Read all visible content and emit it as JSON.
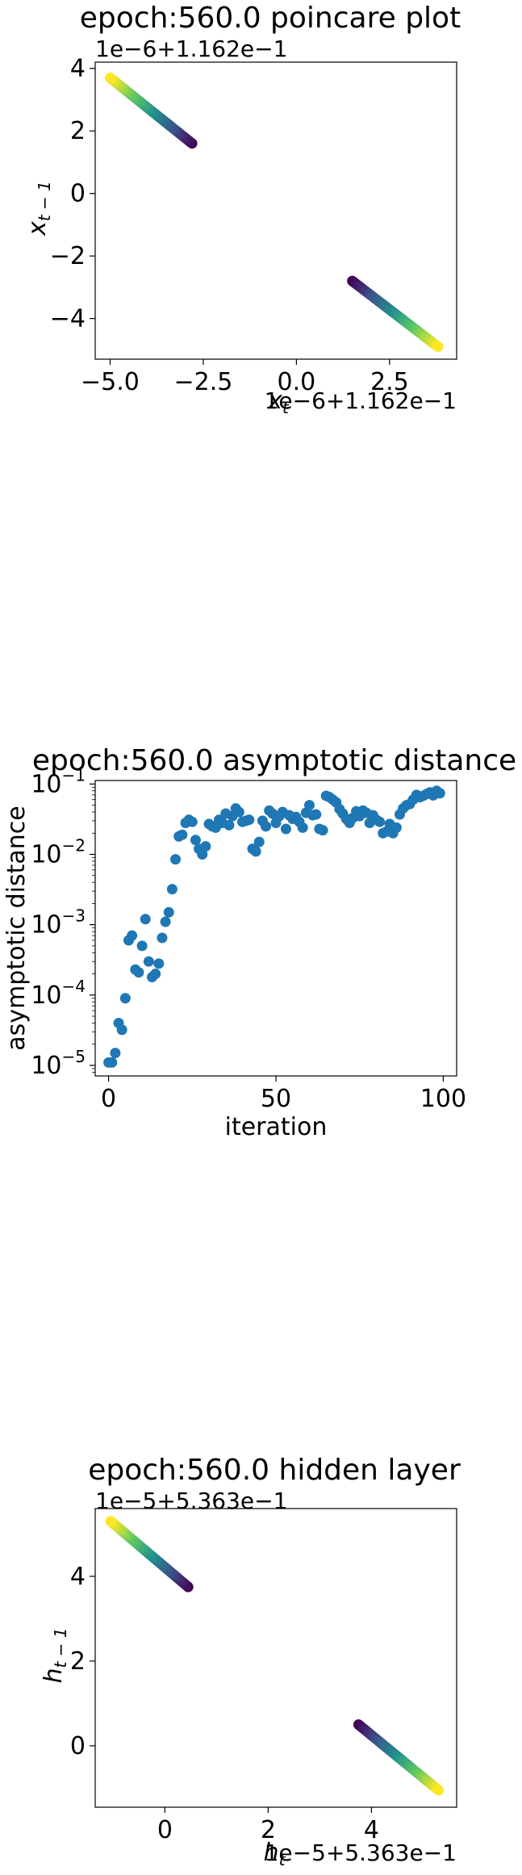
{
  "chart_data": [
    {
      "type": "scatter",
      "title": "epoch:560.0 poincare plot",
      "xlabel": "x_t",
      "ylabel": "x_{t-1}",
      "x_offset_text": "1e−6+1.162e−1",
      "y_offset_text": "1e−6+1.162e−1",
      "xlim": [
        -5.4,
        4.3
      ],
      "ylim": [
        -5.3,
        4.2
      ],
      "x_ticks": [
        "−5.0",
        "−2.5",
        "0.0",
        "2.5"
      ],
      "x_tick_values": [
        -5.0,
        -2.5,
        0.0,
        2.5
      ],
      "y_ticks": [
        "−4",
        "−2",
        "0",
        "2",
        "4"
      ],
      "y_tick_values": [
        -4,
        -2,
        0,
        2,
        4
      ],
      "colormap": "viridis",
      "segments": [
        {
          "x_start": -2.8,
          "y_start": 1.6,
          "x_end": -5.0,
          "y_end": 3.7,
          "color_start": "#440154",
          "color_end": "#fde725"
        },
        {
          "x_start": 1.5,
          "y_start": -2.8,
          "x_end": 3.8,
          "y_end": -4.9,
          "color_start": "#440154",
          "color_end": "#fde725"
        }
      ]
    },
    {
      "type": "scatter",
      "title": "epoch:560.0 asymptotic distance",
      "xlabel": "iteration",
      "ylabel": "asymptotic distance",
      "yscale": "log",
      "xlim": [
        -4,
        104
      ],
      "ylim_log10": [
        -5.15,
        -0.95
      ],
      "x_ticks": [
        "0",
        "50",
        "100"
      ],
      "x_tick_values": [
        0,
        50,
        100
      ],
      "y_tick_exponents": [
        -5,
        -4,
        -3,
        -2,
        -1
      ],
      "marker_color": "#1f77b4",
      "x": [
        0,
        1,
        2,
        3,
        4,
        5,
        6,
        7,
        8,
        9,
        10,
        11,
        12,
        13,
        14,
        15,
        16,
        17,
        18,
        19,
        20,
        21,
        22,
        23,
        24,
        25,
        26,
        27,
        28,
        29,
        30,
        31,
        32,
        33,
        34,
        35,
        36,
        37,
        38,
        39,
        40,
        41,
        42,
        43,
        44,
        45,
        46,
        47,
        48,
        49,
        50,
        51,
        52,
        53,
        54,
        55,
        56,
        57,
        58,
        59,
        60,
        61,
        62,
        63,
        64,
        65,
        66,
        67,
        68,
        69,
        70,
        71,
        72,
        73,
        74,
        75,
        76,
        77,
        78,
        79,
        80,
        81,
        82,
        83,
        84,
        85,
        86,
        87,
        88,
        89,
        90,
        91,
        92,
        93,
        94,
        95,
        96,
        97,
        98,
        99
      ],
      "y": [
        1.1e-05,
        1.1e-05,
        1.5e-05,
        4e-05,
        3.2e-05,
        9e-05,
        0.0006,
        0.0007,
        0.00023,
        0.00021,
        0.0005,
        0.0012,
        0.0003,
        0.00018,
        0.0002,
        0.00028,
        0.00065,
        0.0011,
        0.0015,
        0.0032,
        0.0085,
        0.018,
        0.019,
        0.028,
        0.031,
        0.029,
        0.016,
        0.012,
        0.01,
        0.013,
        0.027,
        0.025,
        0.024,
        0.031,
        0.028,
        0.038,
        0.026,
        0.035,
        0.045,
        0.04,
        0.029,
        0.03,
        0.031,
        0.012,
        0.011,
        0.015,
        0.03,
        0.025,
        0.042,
        0.038,
        0.028,
        0.035,
        0.04,
        0.023,
        0.036,
        0.032,
        0.034,
        0.029,
        0.024,
        0.039,
        0.05,
        0.036,
        0.037,
        0.023,
        0.022,
        0.068,
        0.065,
        0.06,
        0.055,
        0.044,
        0.038,
        0.032,
        0.028,
        0.033,
        0.041,
        0.035,
        0.042,
        0.039,
        0.028,
        0.036,
        0.031,
        0.029,
        0.02,
        0.021,
        0.027,
        0.02,
        0.024,
        0.037,
        0.045,
        0.05,
        0.052,
        0.06,
        0.07,
        0.065,
        0.068,
        0.072,
        0.076,
        0.069,
        0.08,
        0.074
      ]
    },
    {
      "type": "scatter",
      "title": "epoch:560.0 hidden layer",
      "xlabel": "h_t",
      "ylabel": "h_{t-1}",
      "x_offset_text": "1e−5+5.363e−1",
      "y_offset_text": "1e−5+5.363e−1",
      "xlim": [
        -1.35,
        5.65
      ],
      "ylim": [
        -1.45,
        5.6
      ],
      "x_ticks": [
        "0",
        "2",
        "4"
      ],
      "x_tick_values": [
        0,
        2,
        4
      ],
      "y_ticks": [
        "0",
        "2",
        "4"
      ],
      "y_tick_values": [
        0,
        2,
        4
      ],
      "colormap": "viridis",
      "segments": [
        {
          "x_start": 0.45,
          "y_start": 3.75,
          "x_end": -1.05,
          "y_end": 5.3,
          "color_start": "#440154",
          "color_end": "#fde725"
        },
        {
          "x_start": 3.75,
          "y_start": 0.5,
          "x_end": 5.3,
          "y_end": -1.05,
          "color_start": "#440154",
          "color_end": "#fde725"
        }
      ]
    }
  ]
}
